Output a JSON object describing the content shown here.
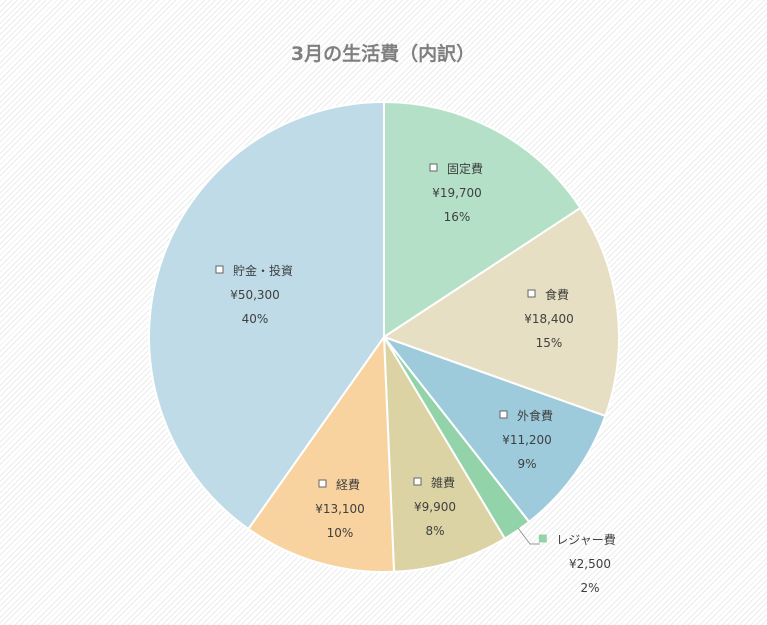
{
  "chart_data": {
    "type": "pie",
    "title": "3月の生活費（内訳）",
    "currency_symbol": "¥",
    "start_angle_deg": 0,
    "direction": "clockwise",
    "slices": [
      {
        "category": "固定費",
        "value": 19700,
        "value_label": "¥19,700",
        "percent_label": "16%",
        "color": "#b5e0c8"
      },
      {
        "category": "食費",
        "value": 18400,
        "value_label": "¥18,400",
        "percent_label": "15%",
        "color": "#e6dfc3"
      },
      {
        "category": "外食費",
        "value": 11200,
        "value_label": "¥11,200",
        "percent_label": "9%",
        "color": "#9ecbdb"
      },
      {
        "category": "レジャー費",
        "value": 2500,
        "value_label": "¥2,500",
        "percent_label": "2%",
        "color": "#93d3a9"
      },
      {
        "category": "雑費",
        "value": 9900,
        "value_label": "¥9,900",
        "percent_label": "8%",
        "color": "#dcd3a4"
      },
      {
        "category": "経費",
        "value": 13100,
        "value_label": "¥13,100",
        "percent_label": "10%",
        "color": "#f8d3a0"
      },
      {
        "category": "貯金・投資",
        "value": 50300,
        "value_label": "¥50,300",
        "percent_label": "40%",
        "color": "#bedbe7"
      }
    ],
    "data_labels": "category, value, percent",
    "legend": "none"
  }
}
